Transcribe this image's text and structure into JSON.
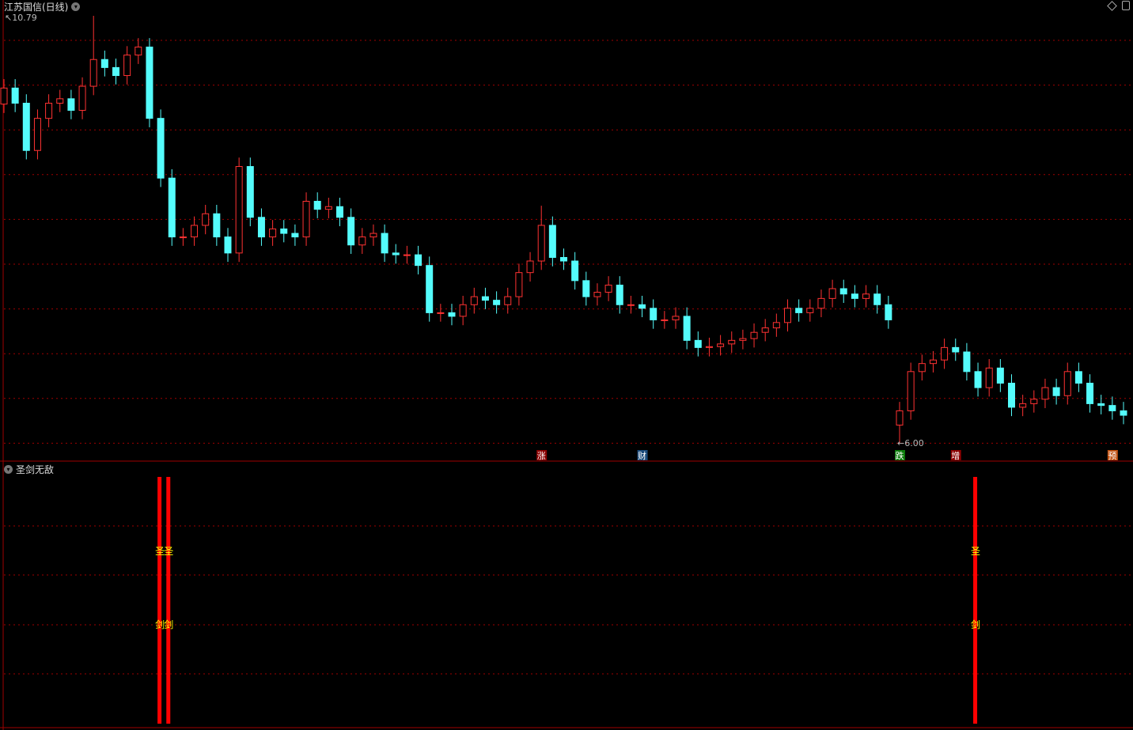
{
  "header": {
    "title": "江苏国信(日线)",
    "indicator": "圣剑无敌"
  },
  "colors": {
    "up": "#ff3232",
    "down": "#54fcfc",
    "grid": "#a00000",
    "signal": "#ff0000",
    "signal_text": "#ffff00"
  },
  "chart_data": {
    "type": "candlestick",
    "y_range": [
      6.0,
      10.79
    ],
    "max_label": "10.79",
    "min_label": "6.00",
    "open": [
      9.8,
      9.98,
      9.81,
      9.28,
      9.64,
      9.81,
      9.86,
      9.73,
      10.0,
      10.3,
      10.21,
      10.12,
      10.35,
      10.44,
      9.64,
      8.97,
      8.31,
      8.31,
      8.44,
      8.57,
      8.31,
      8.13,
      9.1,
      8.53,
      8.31,
      8.4,
      8.35,
      8.31,
      8.71,
      8.62,
      8.65,
      8.53,
      8.22,
      8.31,
      8.35,
      8.13,
      8.11,
      8.11,
      7.99,
      7.46,
      7.46,
      7.42,
      7.55,
      7.64,
      7.6,
      7.55,
      7.64,
      7.91,
      8.04,
      8.44,
      8.08,
      8.04,
      7.82,
      7.64,
      7.69,
      7.77,
      7.55,
      7.55,
      7.51,
      7.38,
      7.38,
      7.42,
      7.15,
      7.07,
      7.08,
      7.11,
      7.15,
      7.17,
      7.24,
      7.29,
      7.35,
      7.51,
      7.46,
      7.51,
      7.62,
      7.73,
      7.67,
      7.62,
      7.67,
      7.55,
      6.2,
      6.36,
      6.8,
      6.89,
      6.93,
      7.07,
      7.02,
      6.8,
      6.62,
      6.84,
      6.67,
      6.4,
      6.44,
      6.49,
      6.62,
      6.53,
      6.8,
      6.67,
      6.44,
      6.42,
      6.36
    ],
    "high": [
      10.08,
      10.08,
      9.91,
      9.74,
      9.91,
      9.96,
      9.96,
      10.1,
      10.79,
      10.4,
      10.31,
      10.45,
      10.54,
      10.54,
      9.74,
      9.07,
      8.41,
      8.54,
      8.67,
      8.67,
      8.41,
      9.2,
      9.2,
      8.63,
      8.5,
      8.5,
      8.45,
      8.81,
      8.81,
      8.75,
      8.75,
      8.63,
      8.41,
      8.45,
      8.45,
      8.23,
      8.21,
      8.21,
      8.09,
      7.56,
      7.56,
      7.65,
      7.74,
      7.74,
      7.7,
      7.74,
      8.01,
      8.14,
      8.66,
      8.54,
      8.18,
      8.14,
      7.92,
      7.79,
      7.87,
      7.87,
      7.65,
      7.65,
      7.61,
      7.48,
      7.52,
      7.52,
      7.25,
      7.18,
      7.21,
      7.25,
      7.27,
      7.34,
      7.39,
      7.45,
      7.61,
      7.61,
      7.61,
      7.72,
      7.83,
      7.83,
      7.77,
      7.77,
      7.77,
      7.65,
      6.46,
      6.9,
      6.99,
      7.03,
      7.17,
      7.17,
      7.12,
      6.9,
      6.94,
      6.94,
      6.77,
      6.54,
      6.59,
      6.72,
      6.72,
      6.9,
      6.9,
      6.77,
      6.54,
      6.52,
      6.46
    ],
    "low": [
      9.7,
      9.71,
      9.18,
      9.18,
      9.54,
      9.71,
      9.63,
      9.63,
      9.9,
      10.11,
      10.02,
      10.02,
      10.25,
      9.54,
      8.87,
      8.21,
      8.21,
      8.21,
      8.34,
      8.21,
      8.03,
      8.03,
      8.43,
      8.21,
      8.21,
      8.25,
      8.21,
      8.21,
      8.52,
      8.52,
      8.43,
      8.12,
      8.12,
      8.21,
      8.03,
      8.01,
      8.01,
      7.89,
      7.36,
      7.36,
      7.32,
      7.32,
      7.45,
      7.5,
      7.45,
      7.45,
      7.54,
      7.81,
      7.94,
      7.98,
      7.94,
      7.72,
      7.54,
      7.54,
      7.59,
      7.45,
      7.45,
      7.41,
      7.28,
      7.28,
      7.28,
      7.05,
      6.97,
      6.97,
      6.98,
      7.01,
      7.05,
      7.07,
      7.14,
      7.19,
      7.25,
      7.36,
      7.36,
      7.41,
      7.52,
      7.57,
      7.52,
      7.52,
      7.45,
      7.28,
      6.0,
      6.26,
      6.7,
      6.79,
      6.83,
      6.92,
      6.7,
      6.52,
      6.52,
      6.57,
      6.3,
      6.3,
      6.34,
      6.39,
      6.43,
      6.43,
      6.57,
      6.34,
      6.32,
      6.26,
      6.21
    ],
    "close": [
      9.98,
      9.81,
      9.28,
      9.64,
      9.81,
      9.86,
      9.73,
      10.0,
      10.3,
      10.21,
      10.12,
      10.35,
      10.44,
      9.64,
      8.97,
      8.31,
      8.31,
      8.44,
      8.57,
      8.31,
      8.13,
      9.1,
      8.53,
      8.31,
      8.4,
      8.35,
      8.31,
      8.71,
      8.62,
      8.65,
      8.53,
      8.22,
      8.31,
      8.35,
      8.13,
      8.11,
      8.11,
      7.99,
      7.46,
      7.46,
      7.42,
      7.55,
      7.64,
      7.6,
      7.55,
      7.64,
      7.91,
      8.04,
      8.44,
      8.08,
      8.04,
      7.82,
      7.64,
      7.69,
      7.77,
      7.55,
      7.55,
      7.51,
      7.38,
      7.38,
      7.42,
      7.15,
      7.07,
      7.08,
      7.11,
      7.15,
      7.17,
      7.24,
      7.29,
      7.35,
      7.51,
      7.46,
      7.51,
      7.62,
      7.73,
      7.67,
      7.62,
      7.67,
      7.55,
      7.38,
      6.36,
      6.8,
      6.89,
      6.93,
      7.07,
      7.02,
      6.8,
      6.62,
      6.84,
      6.67,
      6.4,
      6.44,
      6.49,
      6.62,
      6.53,
      6.8,
      6.67,
      6.44,
      6.42,
      6.36,
      6.31
    ],
    "event_markers": [
      {
        "index": 48,
        "text": "涨",
        "color": "#8b0000"
      },
      {
        "index": 57,
        "text": "财",
        "color": "#1a4a7a"
      },
      {
        "index": 80,
        "text": "跌",
        "color": "#0a7a0a"
      },
      {
        "index": 85,
        "text": "增",
        "color": "#8b0000"
      },
      {
        "index": 99,
        "text": "预",
        "color": "#c05010"
      }
    ],
    "signals": [
      {
        "index": 14,
        "top_text": "圣",
        "bottom_text": "剑"
      },
      {
        "index": 15,
        "top_text": "圣",
        "bottom_text": "剑"
      },
      {
        "index": 87,
        "top_text": "圣",
        "bottom_text": "剑"
      }
    ]
  }
}
